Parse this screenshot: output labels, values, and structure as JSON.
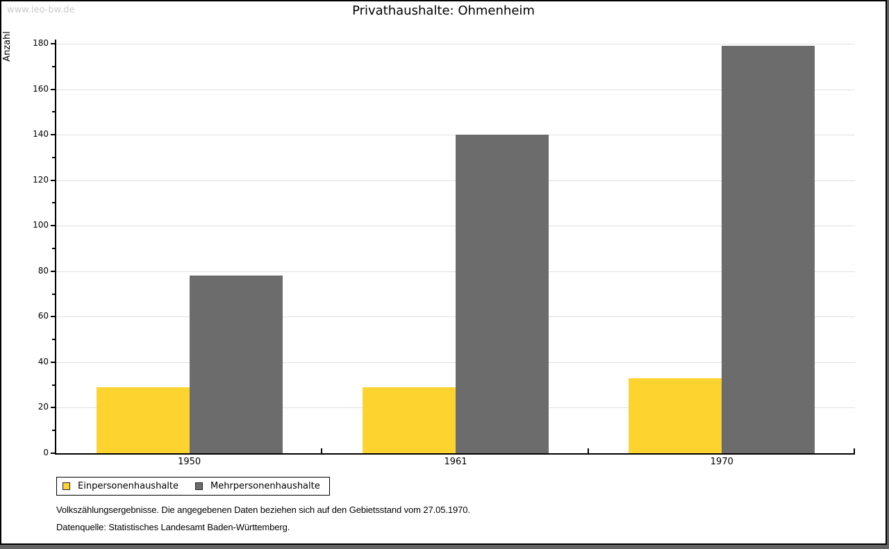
{
  "page": {
    "watermark": "www.leo-bw.de",
    "footer_line1": "Volkszählungsergebnisse. Die angegebenen Daten beziehen sich auf den Gebietsstand vom 27.05.1970.",
    "footer_line2": "Datenquelle: Statistisches Landesamt Baden-Württemberg."
  },
  "chart_data": {
    "type": "bar",
    "title": "Privathaushalte: Ohmenheim",
    "categories": [
      "1950",
      "1961",
      "1970"
    ],
    "series": [
      {
        "name": "Einpersonenhaushalte",
        "color": "#fcd32f",
        "values": [
          29,
          29,
          33
        ]
      },
      {
        "name": "Mehrpersonenhaushalte",
        "color": "#6c6c6c",
        "values": [
          78,
          140,
          179
        ]
      }
    ],
    "xlabel": "",
    "ylabel": "Anzahl",
    "ylim": [
      0,
      180
    ],
    "yticks": [
      0,
      20,
      40,
      60,
      80,
      100,
      120,
      140,
      160,
      180
    ],
    "ytick_step": 20,
    "ytick_minor_step": 10,
    "grid": true,
    "gridline_color": "#e0e0e0",
    "legend_position": "bottom-left"
  }
}
